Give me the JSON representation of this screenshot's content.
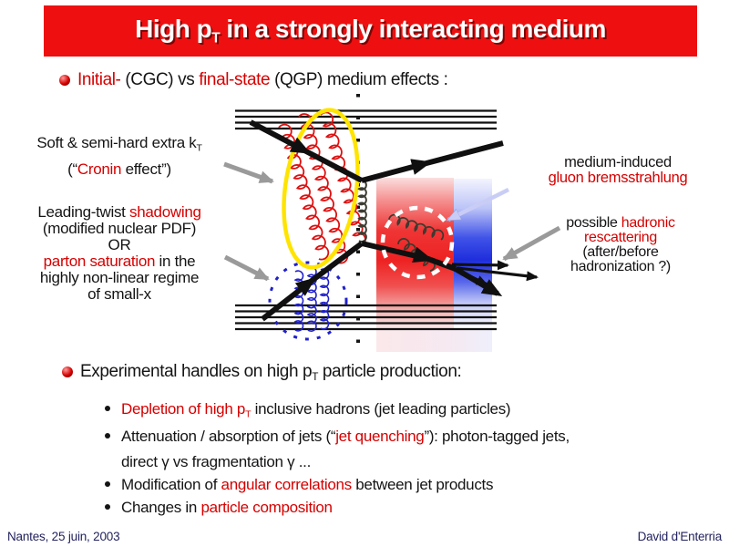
{
  "colors": {
    "banner_red": "#ee1010",
    "accent_red_text": "#d60000",
    "medium_red": "#ee2222",
    "medium_blue": "#1f2edc",
    "highlight_yellow": "#ffe400",
    "saturation_blue": "#2020cc",
    "arrow_gray": "#9a9a9a",
    "arrow_lavender": "#c9cdf6",
    "footer_navy": "#23235f"
  },
  "icons": {
    "main_bullet": "red-sphere-bullet",
    "sub_bullet": "black-dot"
  },
  "title": {
    "pre": "High p",
    "sub": "T",
    "post": " in a strongly interacting medium"
  },
  "bullet1": {
    "s1": "Initial-",
    "s2": " (CGC) vs ",
    "s3": "final-state",
    "s4": " (QGP) medium effects :"
  },
  "labels": {
    "cronin": {
      "l1": "Soft & semi-hard extra k",
      "l1sub": "T",
      "l2a": "(“",
      "l2b": "Cronin",
      "l2c": " effect”)"
    },
    "shadowing": {
      "l1a": "Leading-twist ",
      "l1b": "shadowing",
      "l2": "(modified nuclear PDF)",
      "l3": "OR",
      "l4a": "parton saturation",
      "l4b": " in the",
      "l5": "highly non-linear regime",
      "l6": "of small-x"
    },
    "brems": {
      "l1": "medium-induced",
      "l2": "gluon bremsstrahlung"
    },
    "rescatter": {
      "l1a": "possible ",
      "l1b": "hadronic",
      "l2": "rescattering",
      "l3": "(after/before",
      "l4": "hadronization ?)"
    }
  },
  "bullet2": {
    "s1": "Experimental handles on high p",
    "sub": "T",
    "s2": " particle production:"
  },
  "handles": {
    "h1": {
      "s1": "Depletion of high p",
      "s1sub": "T",
      "s2": " inclusive hadrons (jet leading particles)"
    },
    "h2": {
      "s1": "Attenuation / absorption of jets  (“",
      "s2": "jet quenching",
      "s3": "”): photon-tagged jets,",
      "cont": "direct γ vs fragmentation γ ..."
    },
    "h3": {
      "s1": "Modification of ",
      "s2": "angular correlations",
      "s3": " between jet products"
    },
    "h4": {
      "s1": "Changes in ",
      "s2": "particle composition"
    }
  },
  "footer": {
    "left": "Nantes, 25 juin, 2003",
    "right": "David d'Enterria"
  }
}
